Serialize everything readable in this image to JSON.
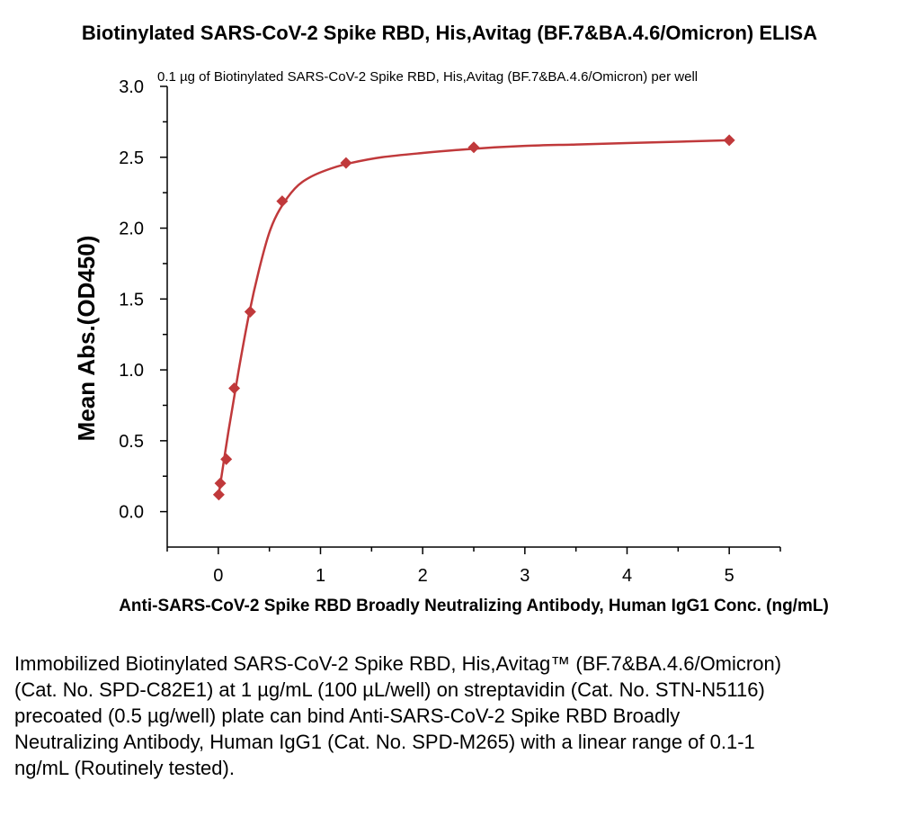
{
  "chart_data": {
    "type": "scatter",
    "title": "Biotinylated SARS-CoV-2 Spike RBD, His,Avitag (BF.7&BA.4.6/Omicron) ELISA",
    "annotation": "0.1 µg of Biotinylated SARS-CoV-2 Spike RBD, His,Avitag  (BF.7&BA.4.6/Omicron) per well",
    "xlabel": "Anti-SARS-CoV-2 Spike RBD Broadly Neutralizing Antibody, Human IgG1 Conc. (ng/mL)",
    "ylabel": "Mean Abs.(OD450)",
    "xlim": [
      -0.5,
      5.5
    ],
    "ylim": [
      -0.25,
      3.0
    ],
    "xticks": [
      0,
      1,
      2,
      3,
      4,
      5
    ],
    "yticks": [
      0.0,
      0.5,
      1.0,
      1.5,
      2.0,
      2.5,
      3.0
    ],
    "ytick_labels": [
      "0.0",
      "0.5",
      "1.0",
      "1.5",
      "2.0",
      "2.5",
      "3.0"
    ],
    "grid": false,
    "color": "#c0393b",
    "series": [
      {
        "x": [
          0.0049,
          0.0195,
          0.078,
          0.156,
          0.3125,
          0.625,
          1.25,
          2.5,
          5.0
        ],
        "y": [
          0.12,
          0.2,
          0.37,
          0.87,
          1.41,
          2.19,
          2.46,
          2.57,
          2.62
        ]
      }
    ],
    "fit": {
      "x": [
        0.0,
        0.1,
        0.2,
        0.3,
        0.4,
        0.5,
        0.6,
        0.75,
        0.9,
        1.1,
        1.3,
        1.6,
        2.0,
        2.5,
        3.0,
        3.5,
        4.0,
        4.5,
        5.0
      ],
      "y": [
        0.1,
        0.57,
        1.0,
        1.39,
        1.71,
        1.97,
        2.13,
        2.28,
        2.36,
        2.42,
        2.46,
        2.5,
        2.53,
        2.56,
        2.58,
        2.59,
        2.6,
        2.61,
        2.62
      ]
    }
  },
  "caption": "Immobilized Biotinylated SARS-CoV-2 Spike RBD, His,Avitag™ (BF.7&BA.4.6/Omicron) (Cat. No. SPD-C82E1) at 1 µg/mL (100 µL/well) on streptavidin (Cat. No. STN-N5116) precoated (0.5 µg/well) plate can bind Anti-SARS-CoV-2 Spike RBD Broadly Neutralizing Antibody, Human IgG1 (Cat. No. SPD-M265) with a linear range of 0.1-1 ng/mL (Routinely tested)."
}
